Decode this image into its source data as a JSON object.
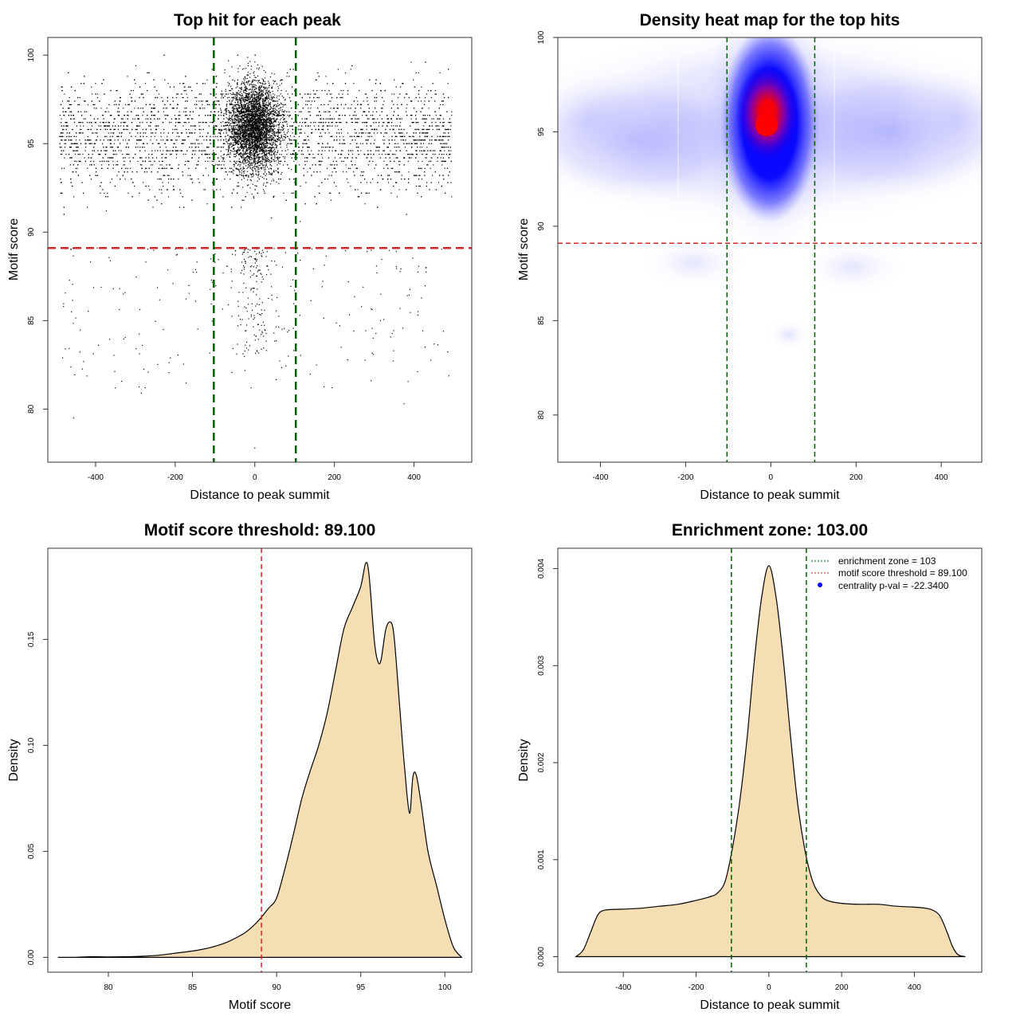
{
  "chart_data": [
    {
      "type": "scatter",
      "title": "Top hit for each peak",
      "xlabel": "Distance to peak summit",
      "ylabel": "Motif score",
      "xlim": [
        -520,
        545
      ],
      "ylim": [
        77,
        101
      ],
      "xticks": [
        -400,
        -200,
        0,
        200,
        400
      ],
      "yticks": [
        80,
        85,
        90,
        95,
        100
      ],
      "xtick_labels": [
        "-400",
        "-200",
        "0",
        "200",
        "400"
      ],
      "ytick_labels": [
        "80",
        "85",
        "90",
        "95",
        "100"
      ],
      "points": {
        "x_range": [
          -490,
          495
        ],
        "center_x": 0,
        "score_mode": 95.5,
        "threshold": 89.1,
        "min_score": 77.8,
        "max_score": 100
      },
      "lines": {
        "threshold": 89.1,
        "zone": [
          -103,
          103
        ]
      },
      "colors": {
        "points": "#000000",
        "threshold": "#d62728",
        "zone": "#006400"
      },
      "grid": false
    },
    {
      "type": "heatmap",
      "title": "Density heat map for the top hits",
      "xlabel": "Distance to peak summit",
      "ylabel": "Motif score",
      "xlim": [
        -500,
        495
      ],
      "ylim": [
        77.5,
        100
      ],
      "xticks": [
        -400,
        -200,
        0,
        200,
        400
      ],
      "yticks": [
        80,
        85,
        90,
        95,
        100
      ],
      "xtick_labels": [
        "-400",
        "-200",
        "0",
        "200",
        "400"
      ],
      "ytick_labels": [
        "80",
        "85",
        "90",
        "95",
        "100"
      ],
      "peak": {
        "x": 0,
        "y": 95.4
      },
      "lines": {
        "threshold": 89.1,
        "zone": [
          -103,
          103
        ]
      },
      "colors": {
        "low": "#ffffff",
        "mid": "#0000ff",
        "high": "#ff0000",
        "threshold": "#d62728",
        "zone": "#006400"
      },
      "grid": false
    },
    {
      "type": "area",
      "title": "Motif score threshold: 89.100",
      "xlabel": "Motif score",
      "ylabel": "Density",
      "xlim": [
        76.4,
        101.6
      ],
      "ylim": [
        -0.007,
        0.193
      ],
      "xticks": [
        80,
        85,
        90,
        95,
        100
      ],
      "yticks": [
        0,
        0.05,
        0.1,
        0.15
      ],
      "xtick_labels": [
        "80",
        "85",
        "90",
        "95",
        "100"
      ],
      "ytick_labels": [
        "0.00",
        "0.05",
        "0.10",
        "0.15"
      ],
      "x": [
        77,
        78,
        79,
        80,
        81,
        82,
        83,
        84,
        85,
        86,
        87,
        88,
        88.5,
        89,
        89.5,
        90,
        90.5,
        91,
        91.5,
        92,
        92.5,
        93,
        93.5,
        94,
        94.5,
        95,
        95.3,
        95.5,
        95.8,
        96,
        96.2,
        96.5,
        96.8,
        97,
        97.3,
        97.6,
        97.9,
        98.1,
        98.3,
        98.6,
        99,
        99.5,
        100,
        100.5,
        101
      ],
      "y": [
        0,
        0,
        0.0003,
        0.0002,
        0.0003,
        0.0005,
        0.001,
        0.002,
        0.003,
        0.0045,
        0.007,
        0.011,
        0.014,
        0.018,
        0.023,
        0.028,
        0.042,
        0.058,
        0.075,
        0.088,
        0.1,
        0.115,
        0.135,
        0.155,
        0.165,
        0.175,
        0.186,
        0.18,
        0.15,
        0.14,
        0.14,
        0.155,
        0.158,
        0.15,
        0.12,
        0.09,
        0.068,
        0.085,
        0.086,
        0.072,
        0.05,
        0.034,
        0.018,
        0.005,
        0
      ],
      "vline": 89.1,
      "colors": {
        "fill": "#f5deb3",
        "line": "#000000",
        "vline": "#d62728"
      },
      "grid": false
    },
    {
      "type": "area",
      "title": "Enrichment zone: 103.00",
      "xlabel": "Distance to peak summit",
      "ylabel": "Density",
      "xlim": [
        -580,
        585
      ],
      "ylim": [
        -0.00016,
        0.00421
      ],
      "xticks": [
        -400,
        -200,
        0,
        200,
        400
      ],
      "yticks": [
        0,
        0.001,
        0.002,
        0.003,
        0.004
      ],
      "xtick_labels": [
        "-400",
        "-200",
        "0",
        "200",
        "400"
      ],
      "ytick_labels": [
        "0.000",
        "0.001",
        "0.002",
        "0.003",
        "0.004"
      ],
      "x": [
        -530,
        -510,
        -490,
        -470,
        -450,
        -400,
        -350,
        -300,
        -250,
        -200,
        -160,
        -140,
        -120,
        -100,
        -80,
        -60,
        -40,
        -20,
        0,
        20,
        40,
        60,
        80,
        100,
        120,
        140,
        160,
        200,
        250,
        300,
        350,
        400,
        430,
        450,
        470,
        490,
        505,
        520,
        540
      ],
      "y": [
        0,
        7e-05,
        0.00025,
        0.00043,
        0.00048,
        0.00049,
        0.0005,
        0.00052,
        0.00054,
        0.00058,
        0.00062,
        0.00066,
        0.00078,
        0.00112,
        0.0016,
        0.00225,
        0.00305,
        0.0037,
        0.00403,
        0.0037,
        0.00305,
        0.00225,
        0.00155,
        0.00108,
        0.00078,
        0.00064,
        0.00058,
        0.00055,
        0.00054,
        0.00054,
        0.00052,
        0.00051,
        0.0005,
        0.00048,
        0.00042,
        0.00025,
        0.0001,
        2e-05,
        0
      ],
      "vlines": [
        -103,
        103
      ],
      "legend": {
        "position": "top-right",
        "entries": [
          {
            "label": "enrichment zone = 103",
            "color": "#006400",
            "style": "line"
          },
          {
            "label": "motif score threshold = 89.100",
            "color": "#d62728",
            "style": "line"
          },
          {
            "label": "centrality p-val = -22.3400",
            "color": "#0000ff",
            "style": "point"
          }
        ]
      },
      "colors": {
        "fill": "#f5deb3",
        "line": "#000000",
        "vline": "#006400"
      },
      "grid": false
    }
  ]
}
